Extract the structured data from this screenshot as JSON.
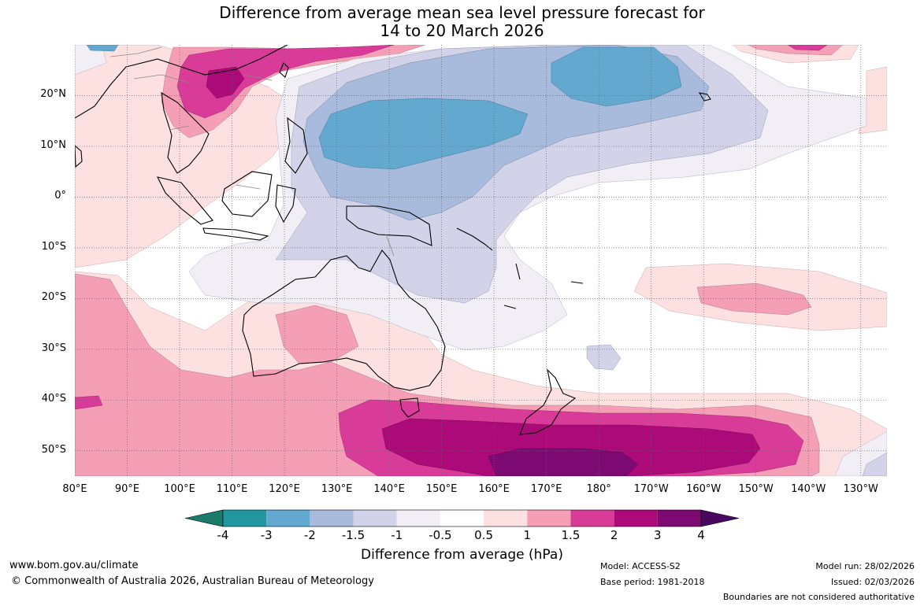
{
  "title": {
    "line1": "Difference from average mean sea level pressure forecast for",
    "line2": "14 to 20 March 2026"
  },
  "map": {
    "projection": "equirectangular",
    "lon_range": [
      80,
      235
    ],
    "lat_range": [
      -55,
      30
    ],
    "lat_labels": [
      "20°N",
      "10°N",
      "0°",
      "10°S",
      "20°S",
      "30°S",
      "40°S",
      "50°S"
    ],
    "lon_labels": [
      "80°E",
      "90°E",
      "100°E",
      "110°E",
      "120°E",
      "130°E",
      "140°E",
      "150°E",
      "160°E",
      "170°E",
      "180°",
      "170°W",
      "160°W",
      "150°W",
      "140°W",
      "130°W"
    ]
  },
  "colorbar": {
    "title": "Difference from average (hPa)",
    "levels": [
      "-4",
      "-3",
      "-2",
      "-1.5",
      "-1",
      "-0.5",
      "0.5",
      "1",
      "1.5",
      "2",
      "3",
      "4"
    ],
    "colors": [
      "#1a7a6c",
      "#2196a0",
      "#63a8cf",
      "#a9bbdc",
      "#d2d3e8",
      "#f1eef6",
      "#ffffff",
      "#fde0e0",
      "#f49fb6",
      "#d93b98",
      "#ad0a79",
      "#7d0973",
      "#490760"
    ]
  },
  "footer": {
    "url": "www.bom.gov.au/climate",
    "copyright": "© Commonwealth of Australia 2026, Australian Bureau of Meteorology",
    "model": "Model: ACCESS-S2",
    "base_period": "Base period: 1981-2018",
    "model_run": "Model run: 28/02/2026",
    "issued": "Issued: 02/03/2026",
    "disclaimer": "Boundaries are not considered authoritative"
  }
}
